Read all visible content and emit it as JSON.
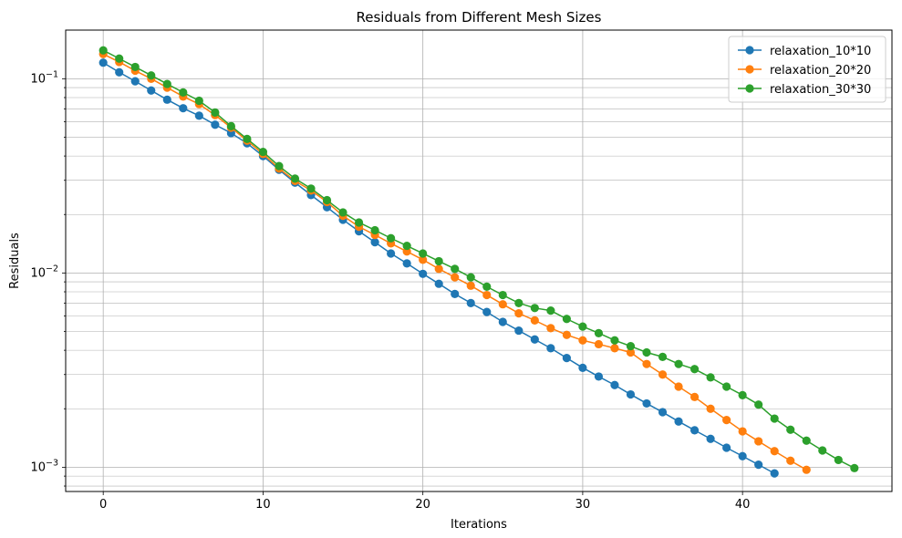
{
  "chart_data": {
    "type": "line",
    "title": "Residuals from Different Mesh Sizes",
    "xlabel": "Iterations",
    "ylabel": "Residuals",
    "xlim": [
      -2.35,
      49.35
    ],
    "ylim": [
      0.00075,
      0.178
    ],
    "yscale": "log",
    "grid": true,
    "legend_position": "top-right",
    "x_ticks": [
      0,
      10,
      20,
      30,
      40
    ],
    "y_ticks": [
      {
        "value": 0.1,
        "base": "10",
        "exp": "−1"
      },
      {
        "value": 0.01,
        "base": "10",
        "exp": "−2"
      },
      {
        "value": 0.001,
        "base": "10",
        "exp": "−3"
      }
    ],
    "series": [
      {
        "name": "relaxation_10*10",
        "color": "#1f77b4",
        "y": [
          0.121,
          0.108,
          0.097,
          0.087,
          0.078,
          0.0705,
          0.0645,
          0.058,
          0.0525,
          0.0465,
          0.04,
          0.034,
          0.0292,
          0.0252,
          0.0218,
          0.0188,
          0.0164,
          0.0144,
          0.0126,
          0.0112,
          0.0099,
          0.0088,
          0.0078,
          0.007,
          0.0063,
          0.0056,
          0.00505,
          0.00455,
          0.0041,
          0.00365,
          0.00325,
          0.00293,
          0.00265,
          0.00237,
          0.00213,
          0.00192,
          0.00172,
          0.00155,
          0.0014,
          0.00126,
          0.00114,
          0.00103,
          0.00093
        ]
      },
      {
        "name": "relaxation_20*20",
        "color": "#ff7f0e",
        "y": [
          0.134,
          0.122,
          0.11,
          0.1,
          0.09,
          0.081,
          0.074,
          0.065,
          0.056,
          0.048,
          0.041,
          0.0345,
          0.0298,
          0.0266,
          0.0232,
          0.0197,
          0.0173,
          0.0157,
          0.0142,
          0.0129,
          0.0117,
          0.0105,
          0.0095,
          0.0086,
          0.0077,
          0.0069,
          0.0062,
          0.0057,
          0.0052,
          0.0048,
          0.0045,
          0.0043,
          0.0041,
          0.0039,
          0.0034,
          0.003,
          0.0026,
          0.0023,
          0.002,
          0.00175,
          0.00153,
          0.00136,
          0.00121,
          0.00108,
          0.00097
        ]
      },
      {
        "name": "relaxation_30*30",
        "color": "#2ca02c",
        "y": [
          0.14,
          0.127,
          0.115,
          0.104,
          0.094,
          0.085,
          0.077,
          0.067,
          0.057,
          0.049,
          0.042,
          0.0355,
          0.0306,
          0.0272,
          0.0237,
          0.0205,
          0.0182,
          0.0166,
          0.0151,
          0.0138,
          0.0126,
          0.0115,
          0.0105,
          0.0095,
          0.0085,
          0.0077,
          0.007,
          0.0066,
          0.0064,
          0.0058,
          0.0053,
          0.0049,
          0.0045,
          0.0042,
          0.0039,
          0.0037,
          0.0034,
          0.0032,
          0.0029,
          0.0026,
          0.00235,
          0.0021,
          0.00178,
          0.00156,
          0.00137,
          0.00122,
          0.00109,
          0.00099
        ]
      }
    ]
  }
}
